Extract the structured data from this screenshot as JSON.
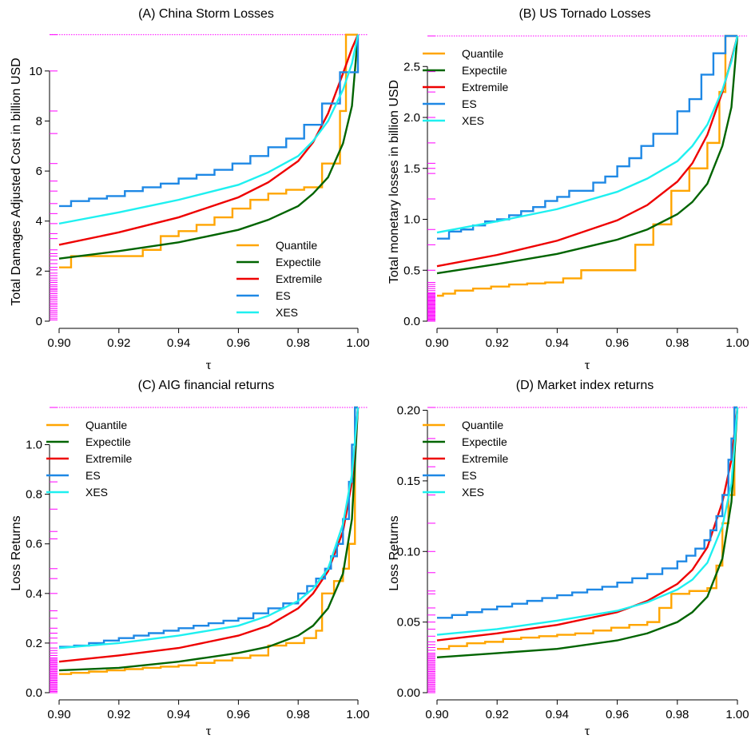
{
  "colors": {
    "Quantile": "#FFA500",
    "Expectile": "#006400",
    "Extremile": "#EE0000",
    "ES": "#1E88E5",
    "XES": "#1EF0F0",
    "rug": "#FF00FF"
  },
  "chart_data": [
    {
      "type": "line",
      "title": "(A) China Storm Losses",
      "xlabel": "τ",
      "ylabel": "Total Damages Adjusted Cost in billion USD",
      "xlim": [
        0.9,
        1.0
      ],
      "ylim": [
        0,
        11.4
      ],
      "xticks": [
        0.9,
        0.92,
        0.94,
        0.96,
        0.98,
        1.0
      ],
      "xtick_labels": [
        "0.90",
        "0.92",
        "0.94",
        "0.96",
        "0.98",
        "1.00"
      ],
      "yticks": [
        0,
        2,
        4,
        6,
        8,
        10
      ],
      "ytick_labels": [
        "0",
        "2",
        "4",
        "6",
        "8",
        "10"
      ],
      "max_line": 11.45,
      "legend_position": "bottom-right",
      "rug": [
        0.05,
        0.12,
        0.2,
        0.28,
        0.35,
        0.42,
        0.5,
        0.58,
        0.65,
        0.72,
        0.8,
        0.88,
        0.95,
        1.02,
        1.1,
        1.18,
        1.25,
        1.3,
        1.38,
        1.45,
        1.55,
        1.63,
        1.72,
        1.82,
        1.92,
        2.05,
        2.15,
        2.3,
        2.45,
        2.6,
        2.7,
        2.85,
        3.3,
        3.5,
        3.9,
        4.3,
        4.7,
        5.2,
        5.6,
        6.3,
        7.5,
        8.4,
        10.0,
        11.45
      ],
      "series": [
        {
          "name": "Quantile",
          "step": true,
          "x": [
            0.9,
            0.904,
            0.928,
            0.934,
            0.94,
            0.946,
            0.952,
            0.958,
            0.964,
            0.97,
            0.976,
            0.982,
            0.988,
            0.994,
            0.996,
            1.0
          ],
          "y": [
            2.15,
            2.6,
            2.85,
            3.4,
            3.6,
            3.85,
            4.15,
            4.5,
            4.85,
            5.1,
            5.25,
            5.35,
            6.3,
            8.4,
            11.45,
            11.45
          ]
        },
        {
          "name": "Expectile",
          "x": [
            0.9,
            0.92,
            0.94,
            0.96,
            0.97,
            0.98,
            0.985,
            0.99,
            0.995,
            0.998,
            1.0
          ],
          "y": [
            2.5,
            2.8,
            3.15,
            3.65,
            4.05,
            4.6,
            5.1,
            5.75,
            7.1,
            8.6,
            11.45
          ]
        },
        {
          "name": "Extremile",
          "x": [
            0.9,
            0.92,
            0.94,
            0.96,
            0.97,
            0.98,
            0.985,
            0.99,
            0.995,
            0.998,
            1.0
          ],
          "y": [
            3.05,
            3.55,
            4.15,
            4.95,
            5.55,
            6.4,
            7.15,
            8.3,
            9.9,
            10.9,
            11.45
          ]
        },
        {
          "name": "ES",
          "step": true,
          "x": [
            0.9,
            0.904,
            0.91,
            0.916,
            0.922,
            0.928,
            0.934,
            0.94,
            0.946,
            0.952,
            0.958,
            0.964,
            0.97,
            0.976,
            0.982,
            0.988,
            0.994,
            1.0
          ],
          "y": [
            4.6,
            4.8,
            4.9,
            5.0,
            5.2,
            5.35,
            5.5,
            5.7,
            5.85,
            6.05,
            6.3,
            6.6,
            6.95,
            7.3,
            7.85,
            8.7,
            9.95,
            11.45
          ]
        },
        {
          "name": "XES",
          "x": [
            0.9,
            0.92,
            0.94,
            0.96,
            0.97,
            0.98,
            0.985,
            0.99,
            0.995,
            0.998,
            1.0
          ],
          "y": [
            3.9,
            4.35,
            4.85,
            5.45,
            5.95,
            6.6,
            7.2,
            8.0,
            9.25,
            10.3,
            11.45
          ]
        }
      ]
    },
    {
      "type": "line",
      "title": "(B) US Tornado Losses",
      "xlabel": "τ",
      "ylabel": "Total monetary losses in billion USD",
      "xlim": [
        0.9,
        1.0
      ],
      "ylim": [
        0,
        2.8
      ],
      "xticks": [
        0.9,
        0.92,
        0.94,
        0.96,
        0.98,
        1.0
      ],
      "xtick_labels": [
        "0.90",
        "0.92",
        "0.94",
        "0.96",
        "0.98",
        "1.00"
      ],
      "yticks": [
        0,
        0.5,
        1.0,
        1.5,
        2.0,
        2.5
      ],
      "ytick_labels": [
        "0.0",
        "0.5",
        "1.0",
        "1.5",
        "2.0",
        "2.5"
      ],
      "max_line": 2.8,
      "legend_position": "top-left",
      "rug": [
        0.0,
        0.01,
        0.02,
        0.03,
        0.04,
        0.05,
        0.06,
        0.07,
        0.08,
        0.09,
        0.1,
        0.11,
        0.12,
        0.13,
        0.14,
        0.15,
        0.16,
        0.17,
        0.18,
        0.19,
        0.2,
        0.21,
        0.22,
        0.23,
        0.24,
        0.25,
        0.26,
        0.27,
        0.28,
        0.3,
        0.32,
        0.34,
        0.36,
        0.38,
        0.5,
        0.75,
        0.9,
        1.2,
        1.45,
        1.5,
        1.55,
        1.75,
        2.0,
        2.25,
        2.45,
        2.8
      ],
      "series": [
        {
          "name": "Quantile",
          "step": true,
          "x": [
            0.9,
            0.902,
            0.906,
            0.912,
            0.918,
            0.924,
            0.93,
            0.936,
            0.942,
            0.948,
            0.954,
            0.96,
            0.966,
            0.972,
            0.978,
            0.984,
            0.99,
            0.994,
            0.996,
            1.0
          ],
          "y": [
            0.25,
            0.27,
            0.3,
            0.32,
            0.34,
            0.36,
            0.37,
            0.38,
            0.42,
            0.5,
            0.5,
            0.5,
            0.75,
            0.95,
            1.28,
            1.5,
            1.75,
            2.25,
            2.8,
            2.8
          ]
        },
        {
          "name": "Expectile",
          "x": [
            0.9,
            0.92,
            0.94,
            0.96,
            0.97,
            0.98,
            0.985,
            0.99,
            0.995,
            0.998,
            1.0
          ],
          "y": [
            0.47,
            0.56,
            0.66,
            0.8,
            0.9,
            1.05,
            1.17,
            1.35,
            1.72,
            2.1,
            2.8
          ]
        },
        {
          "name": "Extremile",
          "x": [
            0.9,
            0.92,
            0.94,
            0.96,
            0.97,
            0.98,
            0.985,
            0.99,
            0.995,
            0.998,
            1.0
          ],
          "y": [
            0.54,
            0.65,
            0.79,
            0.99,
            1.14,
            1.37,
            1.55,
            1.83,
            2.25,
            2.57,
            2.8
          ]
        },
        {
          "name": "ES",
          "step": true,
          "x": [
            0.9,
            0.904,
            0.908,
            0.912,
            0.916,
            0.92,
            0.924,
            0.928,
            0.932,
            0.936,
            0.94,
            0.944,
            0.948,
            0.952,
            0.956,
            0.96,
            0.964,
            0.968,
            0.972,
            0.976,
            0.98,
            0.984,
            0.988,
            0.992,
            0.996,
            1.0
          ],
          "y": [
            0.81,
            0.88,
            0.9,
            0.94,
            0.98,
            1.0,
            1.04,
            1.08,
            1.12,
            1.18,
            1.22,
            1.28,
            1.28,
            1.36,
            1.42,
            1.52,
            1.6,
            1.72,
            1.84,
            1.84,
            2.06,
            2.18,
            2.42,
            2.63,
            2.8,
            2.8
          ]
        },
        {
          "name": "XES",
          "x": [
            0.9,
            0.92,
            0.94,
            0.96,
            0.97,
            0.98,
            0.985,
            0.99,
            0.995,
            0.998,
            1.0
          ],
          "y": [
            0.87,
            0.98,
            1.1,
            1.27,
            1.4,
            1.57,
            1.72,
            1.93,
            2.27,
            2.55,
            2.8
          ]
        }
      ]
    },
    {
      "type": "line",
      "title": "(C) AIG financial returns",
      "xlabel": "τ",
      "ylabel": "Loss  Returns",
      "xlim": [
        0.9,
        1.0
      ],
      "ylim": [
        0,
        1.15
      ],
      "xticks": [
        0.9,
        0.92,
        0.94,
        0.96,
        0.98,
        1.0
      ],
      "xtick_labels": [
        "0.90",
        "0.92",
        "0.94",
        "0.96",
        "0.98",
        "1.00"
      ],
      "yticks": [
        0,
        0.2,
        0.4,
        0.6,
        0.8,
        1.0
      ],
      "ytick_labels": [
        "0.0",
        "0.2",
        "0.4",
        "0.6",
        "0.8",
        "1.0"
      ],
      "max_line": 1.15,
      "legend_position": "top-left",
      "rug": [
        0.0,
        0.005,
        0.01,
        0.015,
        0.02,
        0.025,
        0.03,
        0.035,
        0.04,
        0.045,
        0.05,
        0.055,
        0.06,
        0.065,
        0.07,
        0.075,
        0.08,
        0.085,
        0.09,
        0.095,
        0.1,
        0.105,
        0.11,
        0.115,
        0.12,
        0.125,
        0.13,
        0.135,
        0.14,
        0.15,
        0.16,
        0.17,
        0.18,
        0.2,
        0.22,
        0.24,
        0.26,
        0.3,
        0.33,
        0.4,
        0.46,
        0.5,
        0.62,
        0.65,
        0.74,
        0.85,
        1.15
      ],
      "series": [
        {
          "name": "Quantile",
          "step": true,
          "x": [
            0.9,
            0.904,
            0.91,
            0.916,
            0.922,
            0.928,
            0.934,
            0.94,
            0.946,
            0.952,
            0.958,
            0.964,
            0.97,
            0.976,
            0.982,
            0.986,
            0.988,
            0.992,
            0.995,
            0.997,
            0.999,
            1.0
          ],
          "y": [
            0.075,
            0.08,
            0.085,
            0.09,
            0.095,
            0.1,
            0.105,
            0.11,
            0.12,
            0.13,
            0.14,
            0.15,
            0.19,
            0.2,
            0.22,
            0.25,
            0.4,
            0.45,
            0.5,
            0.6,
            1.15,
            1.15
          ]
        },
        {
          "name": "Expectile",
          "x": [
            0.9,
            0.92,
            0.94,
            0.96,
            0.97,
            0.98,
            0.985,
            0.99,
            0.995,
            0.998,
            1.0
          ],
          "y": [
            0.09,
            0.1,
            0.125,
            0.16,
            0.185,
            0.23,
            0.27,
            0.34,
            0.48,
            0.7,
            1.15
          ]
        },
        {
          "name": "Extremile",
          "x": [
            0.9,
            0.92,
            0.94,
            0.96,
            0.97,
            0.98,
            0.985,
            0.99,
            0.995,
            0.998,
            1.0
          ],
          "y": [
            0.125,
            0.15,
            0.18,
            0.23,
            0.27,
            0.34,
            0.4,
            0.49,
            0.65,
            0.85,
            1.15
          ]
        },
        {
          "name": "ES",
          "step": true,
          "x": [
            0.9,
            0.905,
            0.91,
            0.915,
            0.92,
            0.925,
            0.93,
            0.935,
            0.94,
            0.945,
            0.95,
            0.955,
            0.96,
            0.965,
            0.97,
            0.975,
            0.98,
            0.983,
            0.986,
            0.989,
            0.991,
            0.993,
            0.995,
            0.997,
            0.998,
            0.999,
            1.0
          ],
          "y": [
            0.185,
            0.19,
            0.2,
            0.21,
            0.22,
            0.23,
            0.24,
            0.25,
            0.26,
            0.27,
            0.28,
            0.29,
            0.3,
            0.32,
            0.34,
            0.36,
            0.4,
            0.43,
            0.46,
            0.5,
            0.55,
            0.6,
            0.7,
            0.85,
            1.0,
            1.15,
            1.15
          ]
        },
        {
          "name": "XES",
          "x": [
            0.9,
            0.92,
            0.94,
            0.96,
            0.97,
            0.98,
            0.985,
            0.99,
            0.995,
            0.998,
            1.0
          ],
          "y": [
            0.18,
            0.2,
            0.23,
            0.27,
            0.31,
            0.37,
            0.42,
            0.5,
            0.68,
            0.88,
            1.15
          ]
        }
      ]
    },
    {
      "type": "line",
      "title": "(D) Market index returns",
      "xlabel": "τ",
      "ylabel": "Loss  Returns",
      "xlim": [
        0.9,
        1.0
      ],
      "ylim": [
        0,
        0.202
      ],
      "xticks": [
        0.9,
        0.92,
        0.94,
        0.96,
        0.98,
        1.0
      ],
      "xtick_labels": [
        "0.90",
        "0.92",
        "0.94",
        "0.96",
        "0.98",
        "1.00"
      ],
      "yticks": [
        0,
        0.05,
        0.1,
        0.15,
        0.2
      ],
      "ytick_labels": [
        "0.00",
        "0.05",
        "0.10",
        "0.15",
        "0.20"
      ],
      "max_line": 0.202,
      "legend_position": "top-left",
      "rug": [
        0.0,
        0.001,
        0.002,
        0.003,
        0.004,
        0.005,
        0.006,
        0.007,
        0.008,
        0.009,
        0.01,
        0.011,
        0.012,
        0.013,
        0.014,
        0.015,
        0.016,
        0.017,
        0.018,
        0.019,
        0.02,
        0.021,
        0.022,
        0.023,
        0.024,
        0.025,
        0.026,
        0.027,
        0.028,
        0.03,
        0.032,
        0.034,
        0.036,
        0.04,
        0.045,
        0.05,
        0.055,
        0.06,
        0.07,
        0.072,
        0.085,
        0.1,
        0.12,
        0.14,
        0.16,
        0.18,
        0.202
      ],
      "series": [
        {
          "name": "Quantile",
          "step": true,
          "x": [
            0.9,
            0.904,
            0.91,
            0.916,
            0.922,
            0.928,
            0.934,
            0.94,
            0.946,
            0.952,
            0.958,
            0.964,
            0.97,
            0.974,
            0.978,
            0.984,
            0.99,
            0.993,
            0.995,
            0.997,
            0.999,
            1.0
          ],
          "y": [
            0.031,
            0.033,
            0.035,
            0.036,
            0.038,
            0.039,
            0.04,
            0.041,
            0.042,
            0.044,
            0.046,
            0.048,
            0.05,
            0.06,
            0.07,
            0.072,
            0.074,
            0.09,
            0.12,
            0.14,
            0.202,
            0.202
          ]
        },
        {
          "name": "Expectile",
          "x": [
            0.9,
            0.92,
            0.94,
            0.96,
            0.97,
            0.98,
            0.985,
            0.99,
            0.995,
            0.998,
            1.0
          ],
          "y": [
            0.025,
            0.028,
            0.031,
            0.037,
            0.042,
            0.05,
            0.057,
            0.068,
            0.095,
            0.135,
            0.202
          ]
        },
        {
          "name": "Extremile",
          "x": [
            0.9,
            0.92,
            0.94,
            0.96,
            0.97,
            0.98,
            0.985,
            0.99,
            0.995,
            0.998,
            1.0
          ],
          "y": [
            0.037,
            0.042,
            0.048,
            0.057,
            0.065,
            0.077,
            0.087,
            0.103,
            0.135,
            0.165,
            0.202
          ]
        },
        {
          "name": "ES",
          "step": true,
          "x": [
            0.9,
            0.905,
            0.91,
            0.915,
            0.92,
            0.925,
            0.93,
            0.935,
            0.94,
            0.945,
            0.95,
            0.955,
            0.96,
            0.965,
            0.97,
            0.975,
            0.98,
            0.983,
            0.986,
            0.989,
            0.991,
            0.993,
            0.995,
            0.997,
            0.998,
            0.999,
            1.0
          ],
          "y": [
            0.053,
            0.055,
            0.057,
            0.059,
            0.061,
            0.063,
            0.065,
            0.067,
            0.069,
            0.071,
            0.073,
            0.075,
            0.078,
            0.081,
            0.084,
            0.088,
            0.093,
            0.097,
            0.102,
            0.108,
            0.115,
            0.125,
            0.14,
            0.165,
            0.18,
            0.202,
            0.202
          ]
        },
        {
          "name": "XES",
          "x": [
            0.9,
            0.92,
            0.94,
            0.96,
            0.97,
            0.98,
            0.985,
            0.99,
            0.995,
            0.998,
            1.0
          ],
          "y": [
            0.041,
            0.045,
            0.051,
            0.058,
            0.064,
            0.073,
            0.08,
            0.092,
            0.118,
            0.148,
            0.202
          ]
        }
      ]
    }
  ]
}
